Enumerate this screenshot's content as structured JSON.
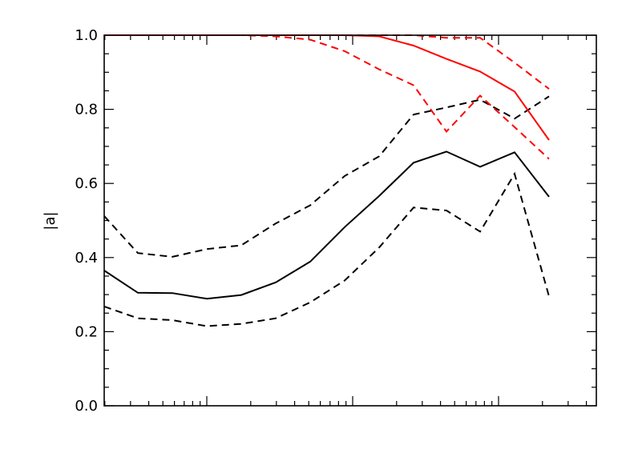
{
  "chart_data": {
    "type": "line",
    "title": "",
    "xlabel": "",
    "ylabel": "|a|",
    "xscale": "log",
    "ylim": [
      0.0,
      1.0
    ],
    "yticks": [
      0.0,
      0.2,
      0.4,
      0.6,
      0.8,
      1.0
    ],
    "ytick_labels": [
      "0.0",
      "0.2",
      "0.4",
      "0.6",
      "0.8",
      "1.0"
    ],
    "x_tick_labels_shown": false,
    "grid": false,
    "legend": "none",
    "series": [
      {
        "id": "black-median",
        "color": "#000000",
        "style": "solid",
        "points": [
          [
            130,
            0.365
          ],
          [
            172,
            0.305
          ],
          [
            215,
            0.304
          ],
          [
            258,
            0.289
          ],
          [
            301,
            0.299
          ],
          [
            344,
            0.333
          ],
          [
            387,
            0.389
          ],
          [
            430,
            0.482
          ],
          [
            473,
            0.566
          ],
          [
            516,
            0.656
          ],
          [
            557,
            0.686
          ],
          [
            599,
            0.645
          ],
          [
            642,
            0.684
          ],
          [
            685,
            0.564
          ]
        ]
      },
      {
        "id": "black-upper",
        "color": "#000000",
        "style": "dashed",
        "points": [
          [
            130,
            0.512
          ],
          [
            172,
            0.412
          ],
          [
            215,
            0.402
          ],
          [
            258,
            0.423
          ],
          [
            301,
            0.433
          ],
          [
            344,
            0.492
          ],
          [
            387,
            0.541
          ],
          [
            430,
            0.62
          ],
          [
            473,
            0.673
          ],
          [
            516,
            0.786
          ],
          [
            557,
            0.805
          ],
          [
            599,
            0.826
          ],
          [
            642,
            0.775
          ],
          [
            685,
            0.835
          ]
        ]
      },
      {
        "id": "black-lower",
        "color": "#000000",
        "style": "dashed",
        "points": [
          [
            130,
            0.268
          ],
          [
            172,
            0.236
          ],
          [
            215,
            0.231
          ],
          [
            258,
            0.215
          ],
          [
            301,
            0.221
          ],
          [
            344,
            0.236
          ],
          [
            387,
            0.279
          ],
          [
            430,
            0.338
          ],
          [
            473,
            0.427
          ],
          [
            516,
            0.535
          ],
          [
            557,
            0.527
          ],
          [
            599,
            0.47
          ],
          [
            642,
            0.626
          ],
          [
            685,
            0.295
          ]
        ]
      },
      {
        "id": "red-median",
        "color": "#ff0000",
        "style": "solid",
        "points": [
          [
            130,
            1.0
          ],
          [
            172,
            1.0
          ],
          [
            215,
            1.0
          ],
          [
            258,
            1.0
          ],
          [
            301,
            1.0
          ],
          [
            344,
            1.0
          ],
          [
            387,
            1.0
          ],
          [
            430,
            1.0
          ],
          [
            473,
            0.997
          ],
          [
            516,
            0.972
          ],
          [
            557,
            0.936
          ],
          [
            599,
            0.902
          ],
          [
            642,
            0.848
          ],
          [
            685,
            0.717
          ]
        ]
      },
      {
        "id": "red-upper",
        "color": "#ff0000",
        "style": "dashed",
        "points": [
          [
            130,
            1.0
          ],
          [
            172,
            1.0
          ],
          [
            215,
            1.0
          ],
          [
            258,
            1.0
          ],
          [
            301,
            1.0
          ],
          [
            344,
            1.0
          ],
          [
            387,
            1.0
          ],
          [
            430,
            1.0
          ],
          [
            473,
            1.0
          ],
          [
            516,
            1.0
          ],
          [
            557,
            0.993
          ],
          [
            599,
            0.993
          ],
          [
            642,
            0.926
          ],
          [
            685,
            0.855
          ]
        ]
      },
      {
        "id": "red-lower",
        "color": "#ff0000",
        "style": "dashed",
        "points": [
          [
            130,
            1.0
          ],
          [
            172,
            1.0
          ],
          [
            215,
            1.0
          ],
          [
            258,
            1.0
          ],
          [
            301,
            1.0
          ],
          [
            344,
            0.997
          ],
          [
            387,
            0.988
          ],
          [
            430,
            0.957
          ],
          [
            473,
            0.908
          ],
          [
            516,
            0.865
          ],
          [
            557,
            0.74
          ],
          [
            599,
            0.837
          ],
          [
            642,
            0.752
          ],
          [
            685,
            0.666
          ]
        ]
      }
    ]
  }
}
